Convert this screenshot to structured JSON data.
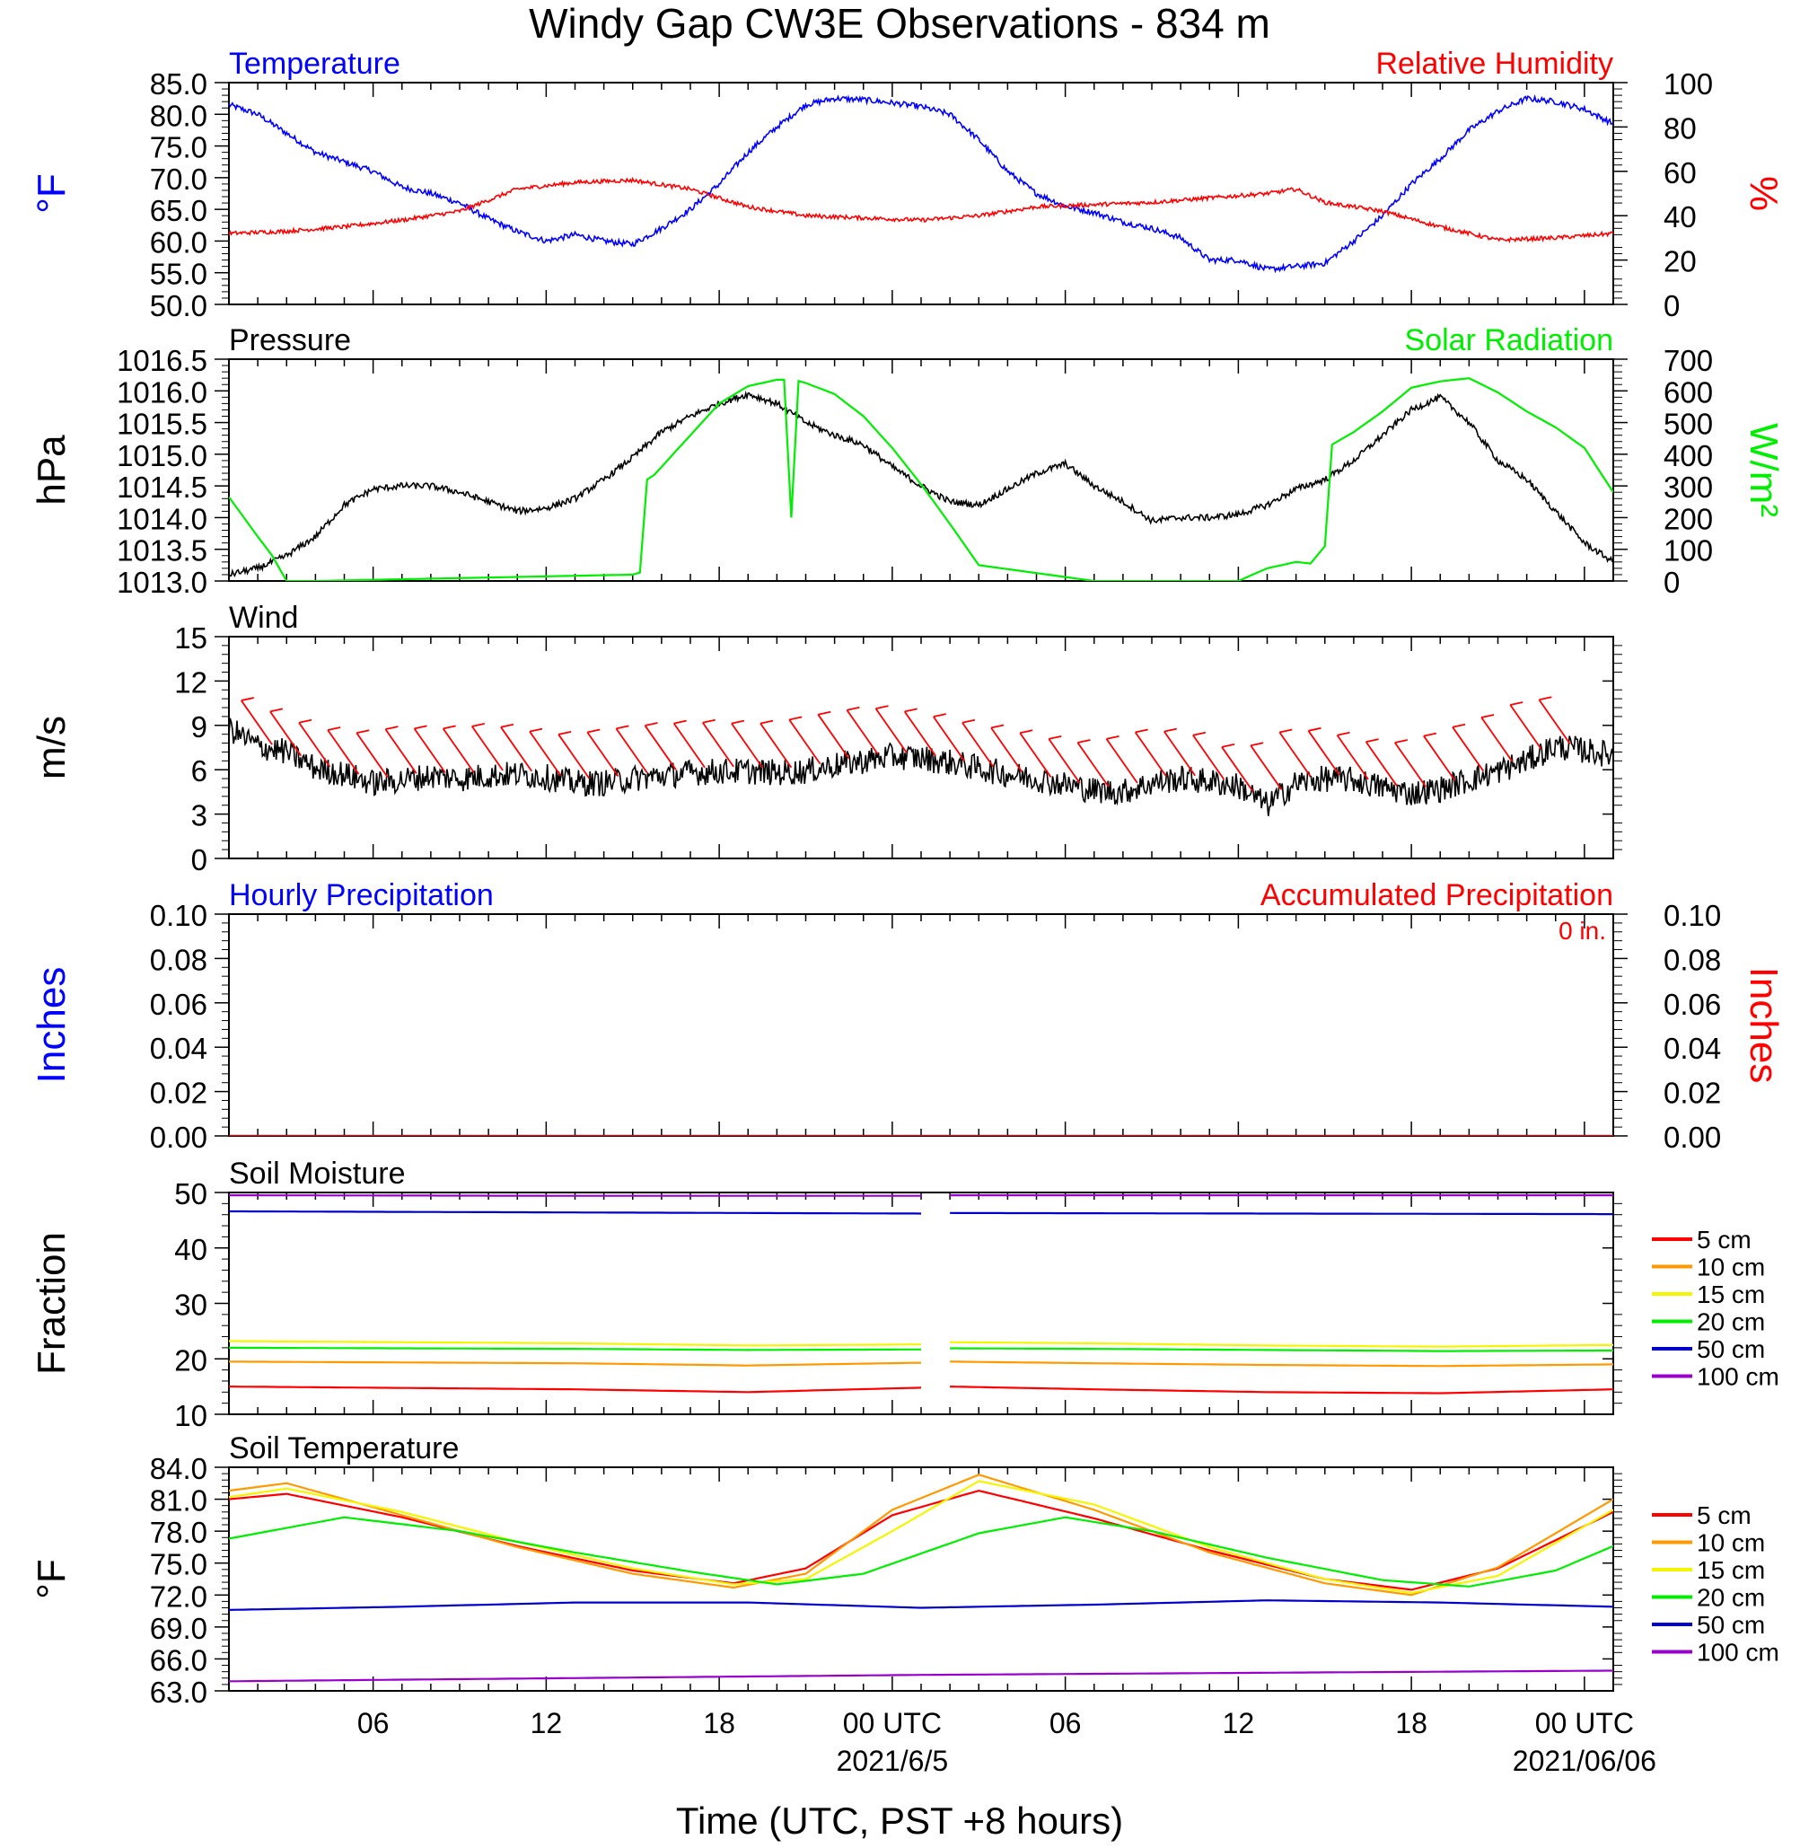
{
  "title": "Windy Gap CW3E Observations - 834 m",
  "xlabel": "Time (UTC, PST +8 hours)",
  "colors": {
    "blue": "#0000ff",
    "red": "#ff0000",
    "green": "#00ee00",
    "black": "#000000",
    "orange": "#ff9900",
    "yellow": "#f5f500",
    "darkblue": "#0000cc",
    "purple": "#9900cc"
  },
  "x_axis": {
    "range_hours": [
      0,
      48
    ],
    "ticks": [
      {
        "h": 5,
        "label": "06"
      },
      {
        "h": 11,
        "label": "12"
      },
      {
        "h": 17,
        "label": "18"
      },
      {
        "h": 23,
        "label": "00 UTC"
      },
      {
        "h": 29,
        "label": "06"
      },
      {
        "h": 35,
        "label": "12"
      },
      {
        "h": 41,
        "label": "18"
      },
      {
        "h": 47,
        "label": "00 UTC"
      }
    ],
    "dates": [
      {
        "h": 23,
        "label": "2021/6/5"
      },
      {
        "h": 47,
        "label": "2021/06/06"
      }
    ]
  },
  "chart_data": [
    {
      "type": "line",
      "left_title": "Temperature",
      "right_title": "Relative Humidity",
      "ylabel_left": "°F",
      "ylabel_right": "%",
      "ylim_left": [
        50,
        85
      ],
      "ylim_right": [
        0,
        100
      ],
      "yticks_left": [
        "85.0",
        "80.0",
        "75.0",
        "70.0",
        "65.0",
        "60.0",
        "55.0",
        "50.0"
      ],
      "yticks_right": [
        "100",
        "80",
        "60",
        "40",
        "20",
        "0"
      ],
      "series": [
        {
          "name": "Temperature",
          "axis": "left",
          "color": "#0000ff",
          "x": [
            0,
            1,
            2,
            3,
            4,
            5,
            6,
            7,
            8,
            9,
            10,
            11,
            12,
            13,
            14,
            15,
            16,
            17,
            18,
            19,
            20,
            21,
            22,
            23,
            24,
            25,
            26,
            27,
            28,
            29,
            30,
            31,
            32,
            33,
            34,
            35,
            36,
            37,
            38,
            39,
            40,
            41,
            42,
            43,
            44,
            45,
            46,
            47,
            48
          ],
          "y": [
            81.5,
            80,
            77,
            74,
            72.5,
            71,
            68.5,
            67.5,
            66,
            63.5,
            61.5,
            60,
            61,
            60,
            59.5,
            62,
            65,
            69,
            74,
            78,
            81.5,
            82.5,
            82.3,
            81.8,
            81.2,
            80,
            76,
            71,
            67.5,
            65.5,
            64.5,
            63,
            62,
            60.5,
            57,
            57,
            55.5,
            56,
            56.5,
            60,
            64,
            69,
            73,
            77.5,
            80.5,
            82.5,
            82,
            80.8,
            78.5
          ]
        },
        {
          "name": "Relative Humidity",
          "axis": "right",
          "color": "#ff0000",
          "x": [
            0,
            2,
            4,
            6,
            8,
            10,
            12,
            14,
            16,
            18,
            20,
            22,
            24,
            26,
            28,
            30,
            32,
            34,
            36,
            37,
            38,
            40,
            42,
            44,
            46,
            48
          ],
          "y": [
            32,
            33,
            35,
            38,
            42,
            52,
            55,
            56,
            52,
            44,
            40,
            39,
            38,
            40,
            44,
            45,
            46,
            48,
            50,
            52,
            46,
            42,
            35,
            29,
            30,
            32
          ]
        }
      ]
    },
    {
      "type": "line",
      "left_title": "Pressure",
      "right_title": "Solar Radiation",
      "ylabel_left": "hPa",
      "ylabel_right": "W/m²",
      "ylim_left": [
        1013.0,
        1016.5
      ],
      "ylim_right": [
        0,
        700
      ],
      "yticks_left": [
        "1016.5",
        "1016.0",
        "1015.5",
        "1015.0",
        "1014.5",
        "1014.0",
        "1013.5",
        "1013.0"
      ],
      "yticks_right": [
        "700",
        "600",
        "500",
        "400",
        "300",
        "200",
        "100",
        "0"
      ],
      "series": [
        {
          "name": "Pressure",
          "axis": "left",
          "color": "#000000",
          "x": [
            0,
            1,
            2,
            3,
            4,
            5,
            6,
            7,
            8,
            9,
            10,
            11,
            12,
            13,
            14,
            15,
            16,
            17,
            18,
            19,
            20,
            21,
            22,
            23,
            24,
            25,
            26,
            27,
            28,
            29,
            30,
            31,
            32,
            33,
            34,
            35,
            36,
            37,
            38,
            39,
            40,
            41,
            42,
            43,
            44,
            45,
            46,
            47,
            48
          ],
          "y": [
            1013.1,
            1013.2,
            1013.4,
            1013.7,
            1014.2,
            1014.45,
            1014.5,
            1014.5,
            1014.4,
            1014.25,
            1014.1,
            1014.15,
            1014.3,
            1014.6,
            1014.95,
            1015.35,
            1015.6,
            1015.8,
            1015.95,
            1015.8,
            1015.5,
            1015.3,
            1015.15,
            1014.8,
            1014.5,
            1014.25,
            1014.2,
            1014.45,
            1014.7,
            1014.85,
            1014.5,
            1014.25,
            1013.95,
            1014.0,
            1014.0,
            1014.05,
            1014.2,
            1014.45,
            1014.6,
            1014.9,
            1015.3,
            1015.7,
            1015.9,
            1015.5,
            1014.9,
            1014.6,
            1014.1,
            1013.6,
            1013.3
          ]
        },
        {
          "name": "Solar Radiation",
          "axis": "right",
          "color": "#00ee00",
          "x": [
            0,
            1,
            1.5,
            2,
            3,
            14,
            14.4,
            14.5,
            14.7,
            15,
            16,
            17,
            18,
            19,
            19.4,
            19.45,
            19.55,
            19.6,
            20,
            21,
            22,
            23,
            24,
            25,
            26,
            30,
            34,
            35,
            35.5,
            36,
            37,
            37.5,
            38,
            38.05,
            39,
            40,
            41,
            42,
            43,
            44,
            45,
            46,
            47,
            48
          ],
          "y": [
            265,
            140,
            80,
            0,
            0,
            20,
            30,
            320,
            330,
            360,
            460,
            560,
            615,
            635,
            635,
            200,
            200,
            635,
            625,
            590,
            520,
            420,
            305,
            180,
            50,
            0,
            0,
            0,
            20,
            40,
            60,
            55,
            110,
            420,
            470,
            535,
            610,
            630,
            640,
            595,
            535,
            485,
            420,
            280
          ]
        }
      ]
    },
    {
      "type": "line",
      "left_title": "Wind",
      "ylabel_left": "m/s",
      "ylim_left": [
        0,
        15
      ],
      "yticks_left": [
        "15",
        "12",
        "9",
        "6",
        "3",
        "0"
      ],
      "series": [
        {
          "name": "Wind",
          "axis": "left",
          "color": "#000000",
          "x": [
            0,
            1,
            2,
            3,
            4,
            5,
            6,
            7,
            8,
            9,
            10,
            11,
            12,
            13,
            14,
            15,
            16,
            17,
            18,
            19,
            20,
            21,
            22,
            23,
            24,
            25,
            26,
            27,
            28,
            29,
            30,
            31,
            32,
            33,
            34,
            35,
            36,
            37,
            38,
            39,
            40,
            41,
            42,
            43,
            44,
            45,
            46,
            47,
            48
          ],
          "y": [
            8.8,
            7.6,
            7.2,
            6.1,
            5.7,
            5.1,
            5.3,
            5.6,
            5.4,
            5.6,
            5.7,
            5.5,
            5.1,
            5.1,
            5.4,
            5.6,
            5.8,
            5.9,
            5.9,
            5.8,
            5.9,
            6.3,
            6.6,
            6.9,
            6.8,
            6.5,
            6.1,
            5.7,
            5.4,
            5.0,
            4.6,
            4.5,
            5.1,
            5.4,
            5.2,
            4.9,
            3.6,
            5.1,
            5.4,
            5.3,
            4.8,
            4.4,
            4.7,
            5.3,
            5.9,
            6.6,
            7.6,
            7.3,
            7.0
          ]
        }
      ],
      "barbs": {
        "color": "#ff0000",
        "x": [
          1.5,
          2.5,
          3.5,
          4.5,
          5.5,
          6.5,
          7.5,
          8.5,
          9.5,
          10.5,
          11.5,
          12.5,
          13.5,
          14.5,
          15.5,
          16.5,
          17.5,
          18.5,
          19.5,
          20.5,
          21.5,
          22.5,
          23.5,
          24.5,
          25.5,
          26.5,
          27.5,
          28.5,
          29.5,
          30.5,
          31.5,
          32.5,
          33.5,
          34.5,
          35.5,
          36.5,
          37.5,
          38.5,
          39.5,
          40.5,
          41.5,
          42.5,
          43.5,
          44.5,
          45.5,
          46.5
        ],
        "speed": [
          8,
          7,
          7,
          6,
          6,
          6,
          6,
          5,
          7,
          6,
          6,
          6,
          6,
          7,
          6,
          6,
          8,
          5,
          5,
          4,
          6,
          6,
          8,
          7,
          6,
          6,
          6,
          6,
          6,
          6,
          5,
          5,
          6,
          7,
          6,
          5,
          4,
          5,
          6,
          5,
          6,
          6,
          7,
          7,
          7,
          7
        ]
      }
    },
    {
      "type": "line",
      "left_title": "Hourly Precipitation",
      "right_title": "Accumulated Precipitation",
      "annotation": "0 in.",
      "ylabel_left": "Inches",
      "ylabel_right": "Inches",
      "ylim_left": [
        0,
        0.1
      ],
      "ylim_right": [
        0,
        0.1
      ],
      "yticks_left": [
        "0.10",
        "0.08",
        "0.06",
        "0.04",
        "0.02",
        "0.00"
      ],
      "yticks_right": [
        "0.10",
        "0.08",
        "0.06",
        "0.04",
        "0.02",
        "0.00"
      ],
      "series": [
        {
          "name": "Hourly Precipitation",
          "axis": "left",
          "color": "#0000ff",
          "x": [
            0,
            48
          ],
          "y": [
            0,
            0
          ]
        },
        {
          "name": "Accumulated Precipitation",
          "axis": "right",
          "color": "#ff0000",
          "x": [
            0,
            48
          ],
          "y": [
            0,
            0
          ]
        }
      ]
    },
    {
      "type": "line",
      "left_title": "Soil Moisture",
      "ylabel_left": "Fraction",
      "ylim_left": [
        10,
        50
      ],
      "yticks_left": [
        "50",
        "40",
        "30",
        "20",
        "10"
      ],
      "gap_hours": [
        24,
        25
      ],
      "legend": [
        "5 cm",
        "10 cm",
        "15 cm",
        "20 cm",
        "50 cm",
        "100 cm"
      ],
      "series": [
        {
          "name": "5 cm",
          "color": "#ff0000",
          "x": [
            0,
            12,
            18,
            24,
            25,
            30,
            36,
            42,
            48
          ],
          "y": [
            15,
            14.5,
            14,
            14.8,
            15,
            14.5,
            14,
            13.8,
            14.5
          ]
        },
        {
          "name": "10 cm",
          "color": "#ff9900",
          "x": [
            0,
            12,
            18,
            24,
            25,
            30,
            36,
            42,
            48
          ],
          "y": [
            19.5,
            19.2,
            18.8,
            19.3,
            19.5,
            19.2,
            18.9,
            18.7,
            19.0
          ]
        },
        {
          "name": "15 cm",
          "color": "#f5f500",
          "x": [
            0,
            12,
            18,
            24,
            25,
            30,
            36,
            42,
            48
          ],
          "y": [
            23.2,
            22.8,
            22.4,
            22.6,
            23.0,
            22.8,
            22.4,
            22.2,
            22.5
          ]
        },
        {
          "name": "20 cm",
          "color": "#00ee00",
          "x": [
            0,
            12,
            18,
            24,
            25,
            30,
            36,
            42,
            48
          ],
          "y": [
            22.0,
            21.8,
            21.6,
            21.7,
            21.9,
            21.8,
            21.6,
            21.4,
            21.5
          ]
        },
        {
          "name": "50 cm",
          "color": "#0000cc",
          "x": [
            0,
            12,
            24,
            25,
            36,
            48
          ],
          "y": [
            46.6,
            46.4,
            46.2,
            46.3,
            46.2,
            46.1
          ]
        },
        {
          "name": "100 cm",
          "color": "#9900cc",
          "x": [
            0,
            12,
            24,
            25,
            36,
            48
          ],
          "y": [
            49.5,
            49.4,
            49.4,
            49.5,
            49.5,
            49.5
          ]
        }
      ]
    },
    {
      "type": "line",
      "left_title": "Soil Temperature",
      "ylabel_left": "°F",
      "ylim_left": [
        63,
        84
      ],
      "yticks_left": [
        "84.0",
        "81.0",
        "78.0",
        "75.0",
        "72.0",
        "69.0",
        "66.0",
        "63.0"
      ],
      "legend": [
        "5 cm",
        "10 cm",
        "15 cm",
        "20 cm",
        "50 cm",
        "100 cm"
      ],
      "series": [
        {
          "name": "5 cm",
          "color": "#ff0000",
          "x": [
            0,
            2,
            6,
            10,
            14,
            17.5,
            20,
            23,
            26,
            30,
            34,
            38,
            41,
            44,
            48
          ],
          "y": [
            81,
            81.5,
            79.3,
            76.6,
            74.3,
            73.1,
            74.5,
            79.5,
            81.8,
            79.2,
            76.2,
            73.5,
            72.5,
            74.5,
            79.8
          ]
        },
        {
          "name": "10 cm",
          "color": "#ff9900",
          "x": [
            0,
            2,
            6,
            10,
            14,
            17.5,
            20,
            23,
            26,
            30,
            34,
            38,
            41,
            44,
            48
          ],
          "y": [
            81.8,
            82.5,
            79.5,
            76.5,
            74,
            72.7,
            74,
            80,
            83.3,
            80,
            76,
            73.1,
            72,
            74.6,
            81
          ]
        },
        {
          "name": "15 cm",
          "color": "#f5f500",
          "x": [
            0,
            2,
            6,
            10,
            14,
            17.5,
            20,
            23,
            26,
            30,
            34,
            38,
            41,
            44,
            48
          ],
          "y": [
            81.2,
            82,
            79.8,
            77,
            74.5,
            73,
            73.5,
            78,
            82.7,
            80.5,
            76.5,
            73.5,
            72.2,
            73.8,
            80
          ]
        },
        {
          "name": "20 cm",
          "color": "#00ee00",
          "x": [
            0,
            4,
            8,
            12,
            16,
            19,
            22,
            26,
            29,
            32,
            36,
            40,
            43,
            46,
            48
          ],
          "y": [
            77.3,
            79.3,
            78,
            76,
            74.2,
            73,
            74,
            77.8,
            79.3,
            78,
            75.5,
            73.4,
            72.8,
            74.3,
            76.6
          ]
        },
        {
          "name": "50 cm",
          "color": "#0000cc",
          "x": [
            0,
            6,
            12,
            18,
            24,
            30,
            36,
            42,
            48
          ],
          "y": [
            70.6,
            70.9,
            71.3,
            71.3,
            70.8,
            71.1,
            71.5,
            71.3,
            70.9
          ]
        },
        {
          "name": "100 cm",
          "color": "#9900cc",
          "x": [
            0,
            12,
            24,
            36,
            48
          ],
          "y": [
            63.9,
            64.2,
            64.5,
            64.7,
            64.9
          ]
        }
      ]
    }
  ]
}
